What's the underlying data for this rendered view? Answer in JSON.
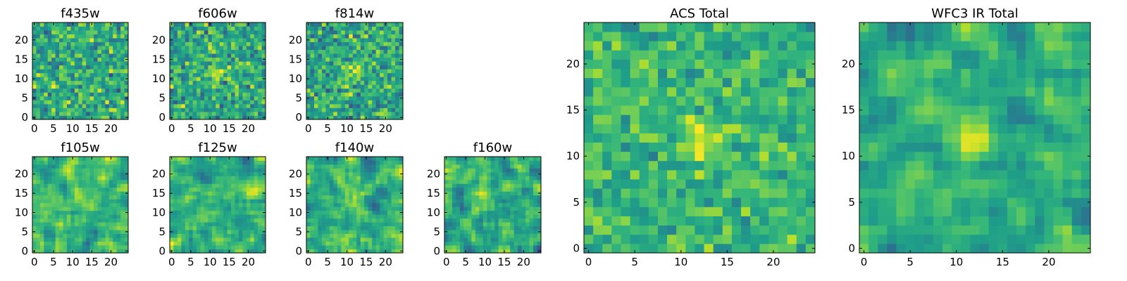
{
  "chart_data": [
    {
      "type": "heatmap",
      "title": "f435w",
      "xticks": [
        0,
        5,
        10,
        15,
        20
      ],
      "yticks": [
        0,
        5,
        10,
        15,
        20
      ],
      "xlim": [
        -0.5,
        24.5
      ],
      "ylim": [
        -0.5,
        24.5
      ],
      "grid_size": [
        25,
        25
      ],
      "colormap": "viridis",
      "pattern": {
        "seed": 11,
        "blur": 0,
        "mean": 0.62,
        "spread": 0.2,
        "hotspot": null
      }
    },
    {
      "type": "heatmap",
      "title": "f606w",
      "xticks": [
        0,
        5,
        10,
        15,
        20
      ],
      "yticks": [
        0,
        5,
        10,
        15,
        20
      ],
      "xlim": [
        -0.5,
        24.5
      ],
      "ylim": [
        -0.5,
        24.5
      ],
      "grid_size": [
        25,
        25
      ],
      "colormap": "viridis",
      "pattern": {
        "seed": 22,
        "blur": 0,
        "mean": 0.6,
        "spread": 0.2,
        "hotspot": [
          12,
          12,
          0.25
        ]
      }
    },
    {
      "type": "heatmap",
      "title": "f814w",
      "xticks": [
        0,
        5,
        10,
        15,
        20
      ],
      "yticks": [
        0,
        5,
        10,
        15,
        20
      ],
      "xlim": [
        -0.5,
        24.5
      ],
      "ylim": [
        -0.5,
        24.5
      ],
      "grid_size": [
        25,
        25
      ],
      "colormap": "viridis",
      "pattern": {
        "seed": 33,
        "blur": 0,
        "mean": 0.6,
        "spread": 0.2,
        "hotspot": [
          12,
          12,
          0.28
        ]
      }
    },
    {
      "type": "heatmap",
      "title": "f105w",
      "xticks": [
        0,
        5,
        10,
        15,
        20
      ],
      "yticks": [
        0,
        5,
        10,
        15,
        20
      ],
      "xlim": [
        -0.5,
        24.5
      ],
      "ylim": [
        -0.5,
        24.5
      ],
      "grid_size": [
        25,
        25
      ],
      "colormap": "viridis",
      "pattern": {
        "seed": 44,
        "blur": 1,
        "mean": 0.66,
        "spread": 0.2,
        "hotspot": [
          13,
          13,
          0.18
        ]
      }
    },
    {
      "type": "heatmap",
      "title": "f125w",
      "xticks": [
        0,
        5,
        10,
        15,
        20
      ],
      "yticks": [
        0,
        5,
        10,
        15,
        20
      ],
      "xlim": [
        -0.5,
        24.5
      ],
      "ylim": [
        -0.5,
        24.5
      ],
      "grid_size": [
        25,
        25
      ],
      "colormap": "viridis",
      "pattern": {
        "seed": 55,
        "blur": 1,
        "mean": 0.63,
        "spread": 0.22,
        "hotspot": [
          12,
          12,
          0.15
        ]
      }
    },
    {
      "type": "heatmap",
      "title": "f140w",
      "xticks": [
        0,
        5,
        10,
        15,
        20
      ],
      "yticks": [
        0,
        5,
        10,
        15,
        20
      ],
      "xlim": [
        -0.5,
        24.5
      ],
      "ylim": [
        -0.5,
        24.5
      ],
      "grid_size": [
        25,
        25
      ],
      "colormap": "viridis",
      "pattern": {
        "seed": 66,
        "blur": 1,
        "mean": 0.63,
        "spread": 0.22,
        "hotspot": [
          12,
          12,
          0.18
        ]
      }
    },
    {
      "type": "heatmap",
      "title": "f160w",
      "xticks": [
        0,
        5,
        10,
        15,
        20
      ],
      "yticks": [
        0,
        5,
        10,
        15,
        20
      ],
      "xlim": [
        -0.5,
        24.5
      ],
      "ylim": [
        -0.5,
        24.5
      ],
      "grid_size": [
        25,
        25
      ],
      "colormap": "viridis",
      "pattern": {
        "seed": 77,
        "blur": 1,
        "mean": 0.6,
        "spread": 0.24,
        "hotspot": [
          11,
          12,
          0.28
        ]
      }
    },
    {
      "type": "heatmap",
      "title": "ACS Total",
      "xticks": [
        0,
        5,
        10,
        15,
        20
      ],
      "yticks": [
        0,
        5,
        10,
        15,
        20
      ],
      "xlim": [
        -0.5,
        24.5
      ],
      "ylim": [
        -0.5,
        24.5
      ],
      "grid_size": [
        25,
        25
      ],
      "colormap": "viridis",
      "pattern": {
        "seed": 88,
        "blur": 0,
        "mean": 0.66,
        "spread": 0.14,
        "hotspot": [
          12,
          12,
          0.24
        ]
      }
    },
    {
      "type": "heatmap",
      "title": "WFC3 IR Total",
      "xticks": [
        0,
        5,
        10,
        15,
        20
      ],
      "yticks": [
        0,
        5,
        10,
        15,
        20
      ],
      "xlim": [
        -0.5,
        24.5
      ],
      "ylim": [
        -0.5,
        24.5
      ],
      "grid_size": [
        25,
        25
      ],
      "colormap": "viridis",
      "pattern": {
        "seed": 99,
        "blur": 1,
        "mean": 0.62,
        "spread": 0.18,
        "hotspot": [
          12,
          12,
          0.3
        ]
      }
    }
  ]
}
